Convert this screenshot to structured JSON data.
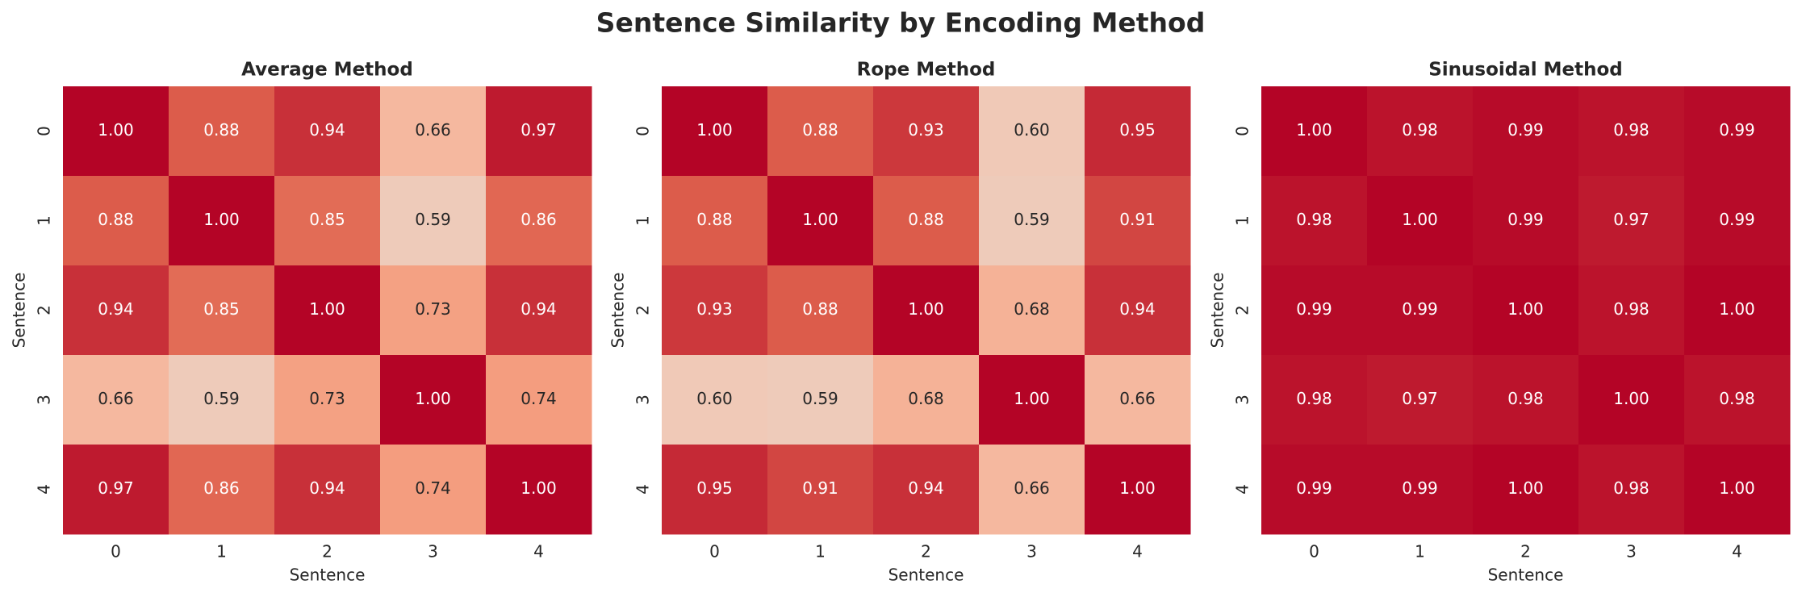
{
  "title": "Sentence Similarity by Encoding Method",
  "chart_data": [
    {
      "type": "heatmap",
      "title": "Average Method",
      "xlabel": "Sentence",
      "ylabel": "Sentence",
      "colormap": "coolwarm",
      "vmin": 0,
      "vmax": 1,
      "x_categories": [
        "0",
        "1",
        "2",
        "3",
        "4"
      ],
      "y_categories": [
        "0",
        "1",
        "2",
        "3",
        "4"
      ],
      "values": [
        [
          1.0,
          0.88,
          0.94,
          0.66,
          0.97
        ],
        [
          0.88,
          1.0,
          0.85,
          0.59,
          0.86
        ],
        [
          0.94,
          0.85,
          1.0,
          0.73,
          0.94
        ],
        [
          0.66,
          0.59,
          0.73,
          1.0,
          0.74
        ],
        [
          0.97,
          0.86,
          0.94,
          0.74,
          1.0
        ]
      ],
      "value_labels": [
        [
          "1.00",
          "0.88",
          "0.94",
          "0.66",
          "0.97"
        ],
        [
          "0.88",
          "1.00",
          "0.85",
          "0.59",
          "0.86"
        ],
        [
          "0.94",
          "0.85",
          "1.00",
          "0.73",
          "0.94"
        ],
        [
          "0.66",
          "0.59",
          "0.73",
          "1.00",
          "0.74"
        ],
        [
          "0.97",
          "0.86",
          "0.94",
          "0.74",
          "1.00"
        ]
      ]
    },
    {
      "type": "heatmap",
      "title": "Rope Method",
      "xlabel": "Sentence",
      "ylabel": "Sentence",
      "colormap": "coolwarm",
      "vmin": 0,
      "vmax": 1,
      "x_categories": [
        "0",
        "1",
        "2",
        "3",
        "4"
      ],
      "y_categories": [
        "0",
        "1",
        "2",
        "3",
        "4"
      ],
      "values": [
        [
          1.0,
          0.88,
          0.93,
          0.6,
          0.95
        ],
        [
          0.88,
          1.0,
          0.88,
          0.59,
          0.91
        ],
        [
          0.93,
          0.88,
          1.0,
          0.68,
          0.94
        ],
        [
          0.6,
          0.59,
          0.68,
          1.0,
          0.66
        ],
        [
          0.95,
          0.91,
          0.94,
          0.66,
          1.0
        ]
      ],
      "value_labels": [
        [
          "1.00",
          "0.88",
          "0.93",
          "0.60",
          "0.95"
        ],
        [
          "0.88",
          "1.00",
          "0.88",
          "0.59",
          "0.91"
        ],
        [
          "0.93",
          "0.88",
          "1.00",
          "0.68",
          "0.94"
        ],
        [
          "0.60",
          "0.59",
          "0.68",
          "1.00",
          "0.66"
        ],
        [
          "0.95",
          "0.91",
          "0.94",
          "0.66",
          "1.00"
        ]
      ]
    },
    {
      "type": "heatmap",
      "title": "Sinusoidal Method",
      "xlabel": "Sentence",
      "ylabel": "Sentence",
      "colormap": "coolwarm",
      "vmin": 0,
      "vmax": 1,
      "x_categories": [
        "0",
        "1",
        "2",
        "3",
        "4"
      ],
      "y_categories": [
        "0",
        "1",
        "2",
        "3",
        "4"
      ],
      "values": [
        [
          1.0,
          0.98,
          0.99,
          0.98,
          0.99
        ],
        [
          0.98,
          1.0,
          0.99,
          0.97,
          0.99
        ],
        [
          0.99,
          0.99,
          1.0,
          0.98,
          1.0
        ],
        [
          0.98,
          0.97,
          0.98,
          1.0,
          0.98
        ],
        [
          0.99,
          0.99,
          1.0,
          0.98,
          1.0
        ]
      ],
      "value_labels": [
        [
          "1.00",
          "0.98",
          "0.99",
          "0.98",
          "0.99"
        ],
        [
          "0.98",
          "1.00",
          "0.99",
          "0.97",
          "0.99"
        ],
        [
          "0.99",
          "0.99",
          "1.00",
          "0.98",
          "1.00"
        ],
        [
          "0.98",
          "0.97",
          "0.98",
          "1.00",
          "0.98"
        ],
        [
          "0.99",
          "0.99",
          "1.00",
          "0.98",
          "1.00"
        ]
      ]
    }
  ]
}
